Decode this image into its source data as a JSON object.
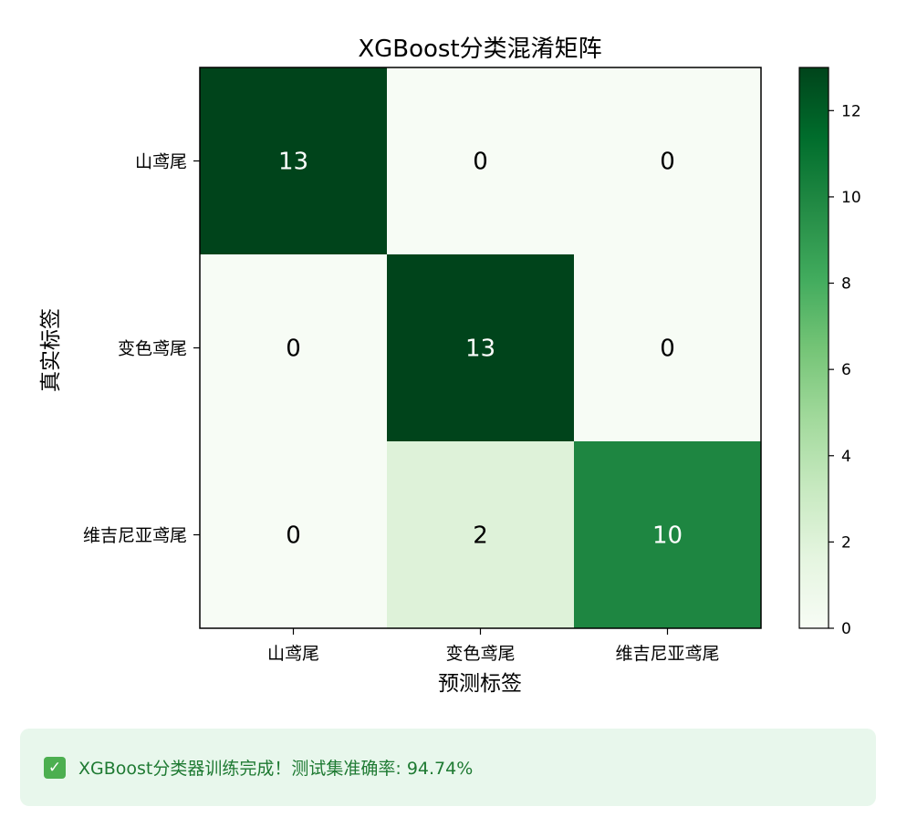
{
  "chart_data": {
    "type": "heatmap",
    "title": "XGBoost分类混淆矩阵",
    "xlabel": "预测标签",
    "ylabel": "真实标签",
    "x_categories": [
      "山鸢尾",
      "变色鸢尾",
      "维吉尼亚鸢尾"
    ],
    "y_categories": [
      "山鸢尾",
      "变色鸢尾",
      "维吉尼亚鸢尾"
    ],
    "matrix": [
      [
        13,
        0,
        0
      ],
      [
        0,
        13,
        0
      ],
      [
        0,
        2,
        10
      ]
    ],
    "colorbar": {
      "min": 0,
      "max": 13,
      "ticks": [
        0,
        2,
        4,
        6,
        8,
        10,
        12
      ]
    },
    "colormap": "Greens",
    "colors": {
      "low": "#f7fcf5",
      "high": "#00441b"
    }
  },
  "status": {
    "icon": "check-icon",
    "icon_glyph": "✓",
    "message": "XGBoost分类器训练完成！测试集准确率: 94.74%"
  }
}
